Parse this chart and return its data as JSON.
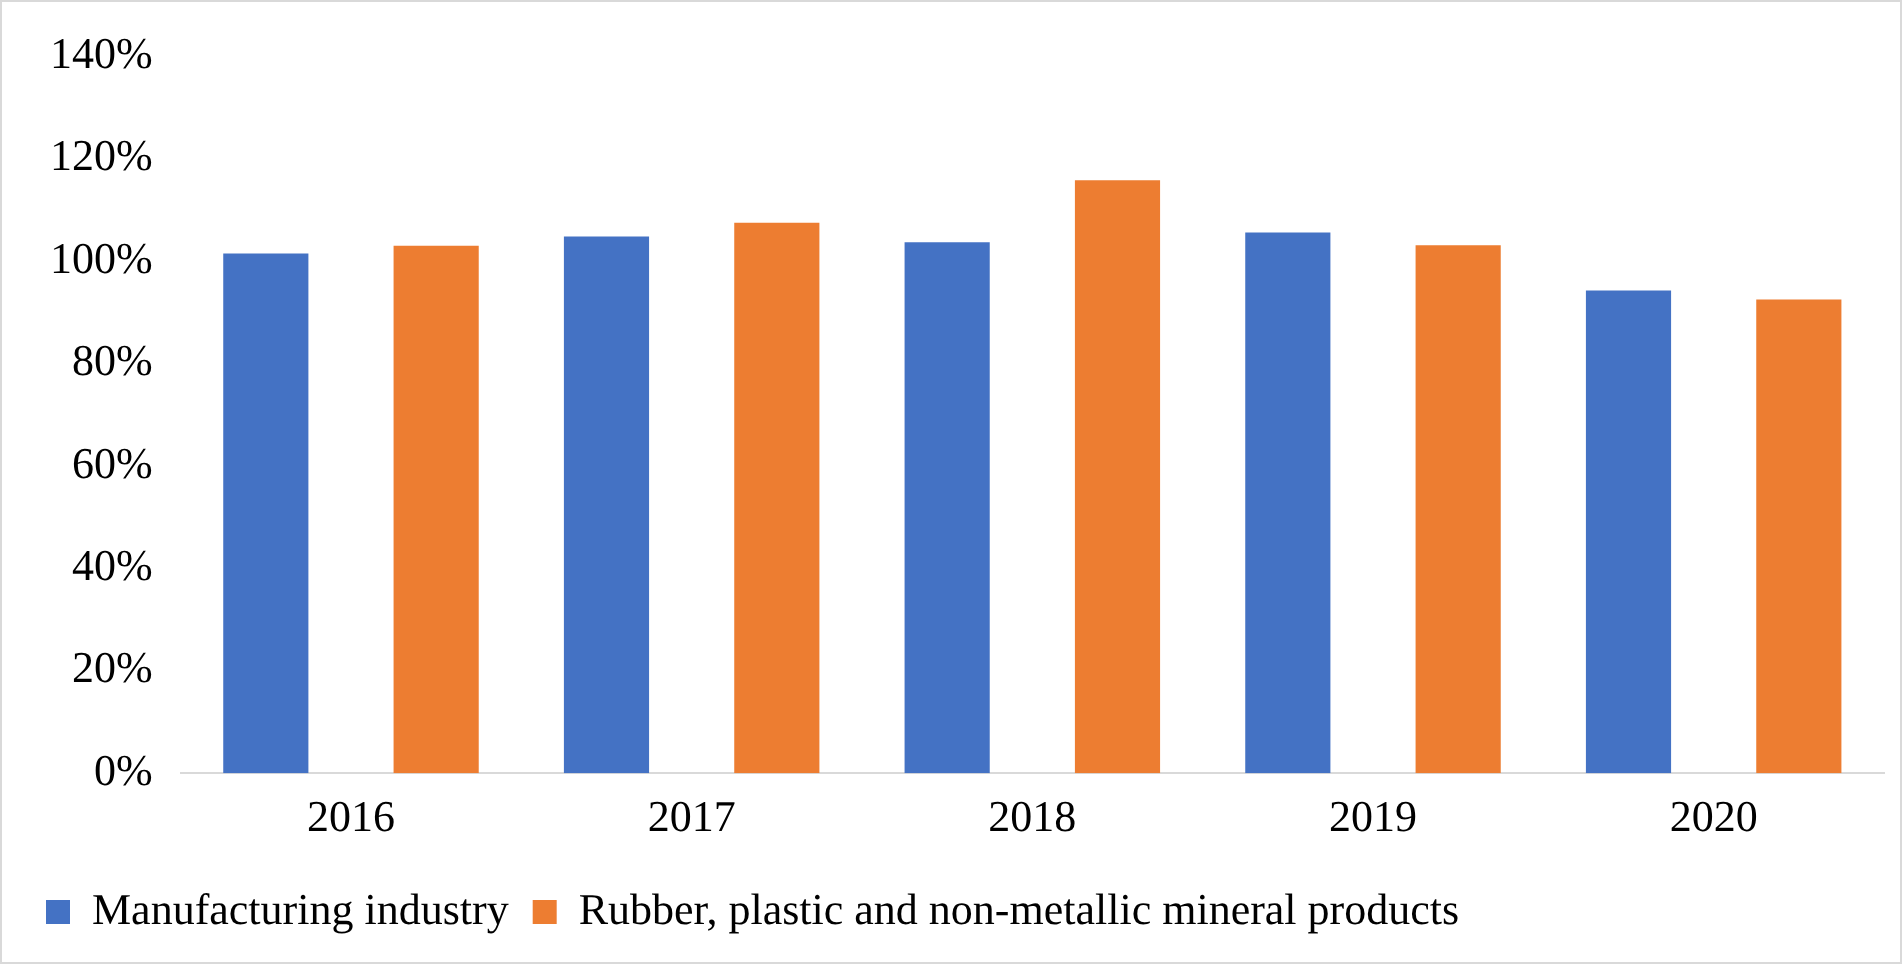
{
  "chart_data": {
    "type": "bar",
    "categories": [
      "2016",
      "2017",
      "2018",
      "2019",
      "2020"
    ],
    "series": [
      {
        "name": "Manufacturing industry",
        "color": "#4472c4",
        "values": [
          101.5,
          104.8,
          103.7,
          105.6,
          94.3
        ]
      },
      {
        "name": "Rubber, plastic and non-metallic mineral products",
        "color": "#ed7d31",
        "values": [
          103.0,
          107.5,
          115.8,
          103.1,
          92.5
        ]
      }
    ],
    "ylim": [
      0,
      140
    ],
    "yticks": [
      {
        "value": 0,
        "label": "0%"
      },
      {
        "value": 20,
        "label": "20%"
      },
      {
        "value": 40,
        "label": "40%"
      },
      {
        "value": 60,
        "label": "60%"
      },
      {
        "value": 80,
        "label": "80%"
      },
      {
        "value": 100,
        "label": "100%"
      },
      {
        "value": 120,
        "label": "120%"
      },
      {
        "value": 140,
        "label": "140%"
      }
    ],
    "grid": false,
    "legend": "bottom"
  }
}
